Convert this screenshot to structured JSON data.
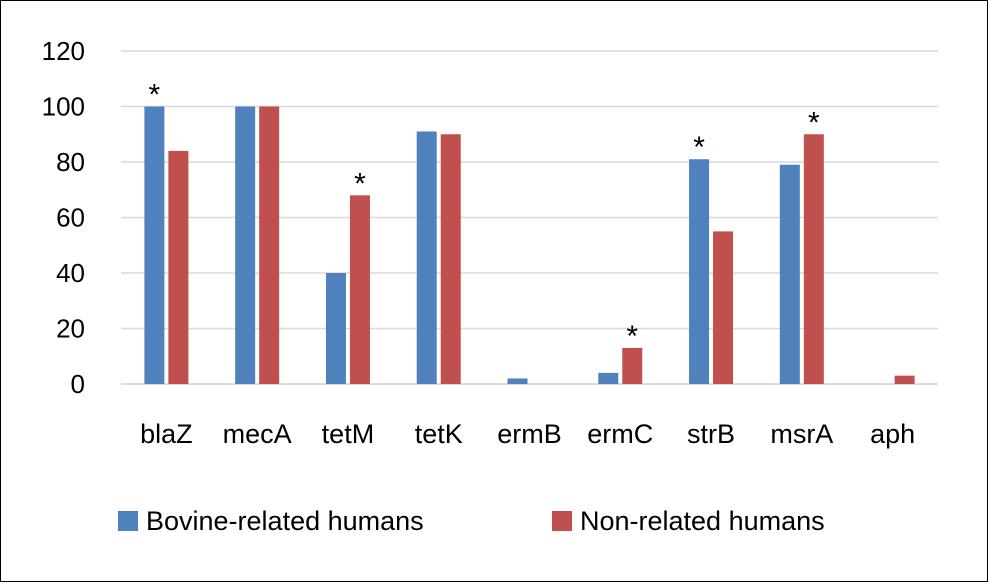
{
  "chart_data": {
    "type": "bar",
    "categories": [
      "blaZ",
      "mecA",
      "tetM",
      "tetK",
      "ermB",
      "ermC",
      "strB",
      "msrA",
      "aph"
    ],
    "series": [
      {
        "name": "Bovine-related humans",
        "color": "#4F81BD",
        "values": [
          100,
          100,
          40,
          91,
          2,
          4,
          81,
          79,
          0
        ]
      },
      {
        "name": "Non-related humans",
        "color": "#C0504D",
        "values": [
          84,
          100,
          68,
          90,
          0,
          13,
          55,
          90,
          3
        ]
      }
    ],
    "ylim": [
      0,
      120
    ],
    "yticks": [
      0,
      20,
      40,
      60,
      80,
      100,
      120
    ],
    "grid": true,
    "legend_position": "bottom",
    "annotations": [
      {
        "category": "blaZ",
        "series": 0,
        "text": "*"
      },
      {
        "category": "tetM",
        "series": 1,
        "text": "*"
      },
      {
        "category": "ermC",
        "series": 1,
        "text": "*"
      },
      {
        "category": "strB",
        "series": 0,
        "text": "*"
      },
      {
        "category": "msrA",
        "series": 1,
        "text": "*"
      }
    ],
    "title": "",
    "xlabel": "",
    "ylabel": ""
  }
}
